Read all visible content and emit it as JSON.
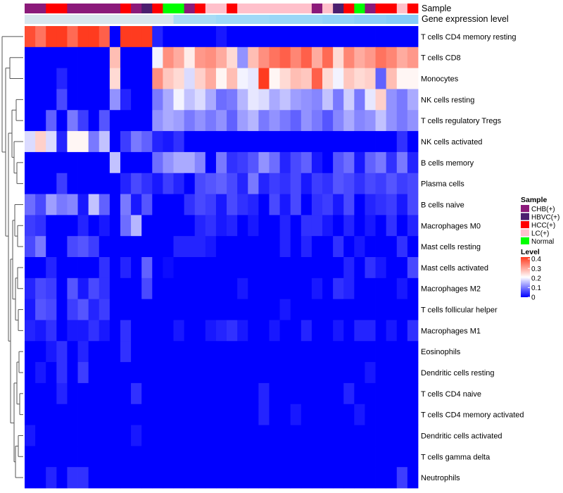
{
  "chart_data": {
    "type": "heatmap",
    "annotation_labels": {
      "sample": "Sample",
      "gene_expression": "Gene expression level"
    },
    "sample_legend": {
      "title": "Sample",
      "entries": [
        {
          "label": "CHB(+)",
          "color": "#8B1A7A"
        },
        {
          "label": "HBVC(+)",
          "color": "#4B1F6F"
        },
        {
          "label": "HCC(+)",
          "color": "#FF0000"
        },
        {
          "label": "LC(+)",
          "color": "#FFC0CB"
        },
        {
          "label": "Normal",
          "color": "#00FF00"
        }
      ]
    },
    "level_legend": {
      "title": "Level",
      "ticks": [
        "0.4",
        "0.3",
        "0.2",
        "0.1",
        "0"
      ],
      "tick_values": [
        0.4,
        0.3,
        0.2,
        0.1,
        0
      ],
      "range": [
        0,
        0.42
      ],
      "colors": [
        "#0000FF",
        "#FFFFFF",
        "#FF3B1F"
      ]
    },
    "sample_groups": [
      "CHB(+)",
      "CHB(+)",
      "HCC(+)",
      "HCC(+)",
      "CHB(+)",
      "CHB(+)",
      "CHB(+)",
      "CHB(+)",
      "CHB(+)",
      "HCC(+)",
      "CHB(+)",
      "HBVC(+)",
      "HCC(+)",
      "Normal",
      "Normal",
      "CHB(+)",
      "HCC(+)",
      "LC(+)",
      "LC(+)",
      "HCC(+)",
      "LC(+)",
      "LC(+)",
      "LC(+)",
      "LC(+)",
      "LC(+)",
      "LC(+)",
      "LC(+)",
      "CHB(+)",
      "LC(+)",
      "HBVC(+)",
      "HCC(+)",
      "Normal",
      "CHB(+)",
      "HCC(+)",
      "HCC(+)",
      "LC(+)",
      "HCC(+)"
    ],
    "gene_expression_colors": [
      "#D8E6EE",
      "#D8E6EE",
      "#D8E6EE",
      "#D8E6EE",
      "#D8E6EE",
      "#D8E6EE",
      "#D8E6EE",
      "#D8E6EE",
      "#D8E6EE",
      "#D8E6EE",
      "#D8E6EE",
      "#D8E6EE",
      "#D8E6EE",
      "#D8E6EE",
      "#A9DCF5",
      "#A9DCF5",
      "#A9DCF5",
      "#A9DCF5",
      "#9FD9F7",
      "#9FD9F7",
      "#9FD9F7",
      "#9FD9F7",
      "#9FD9F7",
      "#9AD7F7",
      "#9AD7F7",
      "#9AD7F7",
      "#9AD7F7",
      "#9AD7F7",
      "#93D3F8",
      "#93D3F8",
      "#93D3F8",
      "#8CCFF8",
      "#8CCFF8",
      "#8CCFF8",
      "#86CCF8",
      "#86CCF8",
      "#86CCF8"
    ],
    "rows": [
      "T cells CD4 memory resting",
      "T cells CD8",
      "Monocytes",
      "NK cells resting",
      "T cells regulatory  Tregs",
      "NK cells activated",
      "B cells memory",
      "Plasma cells",
      "B cells naive",
      "Macrophages M0",
      "Mast cells resting",
      "Mast cells activated",
      "Macrophages M2",
      "T cells follicular helper",
      "Macrophages M1",
      "Eosinophils",
      "Dendritic cells resting",
      "T cells CD4 naive",
      "T cells CD4 memory activated",
      "Dendritic cells activated",
      "T cells gamma delta",
      "Neutrophils"
    ],
    "values": [
      [
        0.4,
        0.36,
        0.42,
        0.42,
        0.37,
        0.42,
        0.42,
        0.38,
        0.0,
        0.42,
        0.42,
        0.42,
        0.03,
        0.0,
        0.0,
        0.0,
        0.0,
        0.0,
        0.02,
        0.0,
        0.0,
        0.0,
        0.0,
        0.0,
        0.0,
        0.0,
        0.0,
        0.0,
        0.0,
        0.0,
        0.0,
        0.0,
        0.0,
        0.0,
        0.0,
        0.0,
        0.0
      ],
      [
        0.0,
        0.0,
        0.0,
        0.0,
        0.0,
        0.0,
        0.0,
        0.0,
        0.28,
        0.0,
        0.0,
        0.0,
        0.2,
        0.33,
        0.3,
        0.23,
        0.32,
        0.33,
        0.3,
        0.25,
        0.12,
        0.28,
        0.33,
        0.36,
        0.38,
        0.34,
        0.38,
        0.3,
        0.37,
        0.25,
        0.34,
        0.3,
        0.32,
        0.36,
        0.34,
        0.3,
        0.32
      ],
      [
        0.0,
        0.0,
        0.0,
        0.03,
        0.0,
        0.0,
        0.0,
        0.0,
        0.25,
        0.0,
        0.0,
        0.0,
        0.33,
        0.27,
        0.25,
        0.18,
        0.26,
        0.3,
        0.22,
        0.28,
        0.2,
        0.19,
        0.42,
        0.22,
        0.25,
        0.28,
        0.27,
        0.38,
        0.25,
        0.2,
        0.27,
        0.25,
        0.26,
        0.08,
        0.28,
        0.22,
        0.22
      ],
      [
        0.0,
        0.0,
        0.0,
        0.06,
        0.0,
        0.0,
        0.0,
        0.0,
        0.12,
        0.03,
        0.0,
        0.0,
        0.1,
        0.14,
        0.2,
        0.16,
        0.18,
        0.14,
        0.09,
        0.1,
        0.15,
        0.19,
        0.18,
        0.14,
        0.16,
        0.13,
        0.12,
        0.11,
        0.16,
        0.1,
        0.17,
        0.1,
        0.19,
        0.26,
        0.12,
        0.1,
        0.14
      ],
      [
        0.0,
        0.0,
        0.08,
        0.0,
        0.1,
        0.05,
        0.0,
        0.07,
        0.0,
        0.0,
        0.0,
        0.0,
        0.12,
        0.14,
        0.13,
        0.1,
        0.12,
        0.1,
        0.12,
        0.08,
        0.13,
        0.15,
        0.1,
        0.12,
        0.1,
        0.08,
        0.12,
        0.1,
        0.07,
        0.11,
        0.14,
        0.11,
        0.12,
        0.16,
        0.12,
        0.1,
        0.12
      ],
      [
        0.18,
        0.26,
        0.18,
        0.03,
        0.22,
        0.22,
        0.1,
        0.16,
        0.0,
        0.05,
        0.1,
        0.08,
        0.03,
        0.02,
        0.04,
        0.0,
        0.0,
        0.0,
        0.0,
        0.0,
        0.0,
        0.0,
        0.0,
        0.0,
        0.0,
        0.0,
        0.0,
        0.0,
        0.0,
        0.0,
        0.0,
        0.0,
        0.0,
        0.0,
        0.0,
        0.04,
        0.0
      ],
      [
        0.0,
        0.0,
        0.0,
        0.0,
        0.0,
        0.0,
        0.0,
        0.0,
        0.16,
        0.0,
        0.0,
        0.0,
        0.09,
        0.12,
        0.14,
        0.14,
        0.11,
        0.0,
        0.1,
        0.04,
        0.05,
        0.07,
        0.12,
        0.09,
        0.03,
        0.06,
        0.08,
        0.02,
        0.0,
        0.07,
        0.09,
        0.02,
        0.08,
        0.1,
        0.04,
        0.1,
        0.03
      ],
      [
        0.0,
        0.0,
        0.0,
        0.05,
        0.0,
        0.0,
        0.0,
        0.0,
        0.0,
        0.03,
        0.06,
        0.04,
        0.02,
        0.05,
        0.03,
        0.0,
        0.06,
        0.07,
        0.08,
        0.06,
        0.03,
        0.1,
        0.03,
        0.05,
        0.04,
        0.06,
        0.02,
        0.05,
        0.04,
        0.07,
        0.06,
        0.04,
        0.06,
        0.05,
        0.07,
        0.05,
        0.06
      ],
      [
        0.09,
        0.06,
        0.13,
        0.1,
        0.11,
        0.02,
        0.16,
        0.08,
        0.0,
        0.1,
        0.02,
        0.07,
        0.0,
        0.0,
        0.0,
        0.04,
        0.06,
        0.05,
        0.02,
        0.06,
        0.04,
        0.03,
        0.0,
        0.06,
        0.02,
        0.06,
        0.0,
        0.04,
        0.05,
        0.02,
        0.06,
        0.0,
        0.03,
        0.04,
        0.05,
        0.02,
        0.06
      ],
      [
        0.05,
        0.04,
        0.0,
        0.0,
        0.0,
        0.03,
        0.0,
        0.02,
        0.0,
        0.09,
        0.15,
        0.0,
        0.0,
        0.0,
        0.0,
        0.0,
        0.03,
        0.04,
        0.02,
        0.03,
        0.0,
        0.02,
        0.0,
        0.0,
        0.03,
        0.0,
        0.04,
        0.04,
        0.02,
        0.0,
        0.03,
        0.0,
        0.02,
        0.0,
        0.04,
        0.0,
        0.03
      ],
      [
        0.06,
        0.1,
        0.0,
        0.0,
        0.06,
        0.07,
        0.05,
        0.0,
        0.0,
        0.0,
        0.0,
        0.0,
        0.0,
        0.0,
        0.03,
        0.03,
        0.03,
        0.02,
        0.0,
        0.0,
        0.0,
        0.0,
        0.0,
        0.0,
        0.03,
        0.0,
        0.03,
        0.0,
        0.0,
        0.04,
        0.0,
        0.02,
        0.0,
        0.0,
        0.0,
        0.04,
        0.0
      ],
      [
        0.0,
        0.0,
        0.03,
        0.0,
        0.0,
        0.0,
        0.0,
        0.04,
        0.0,
        0.03,
        0.0,
        0.08,
        0.0,
        0.01,
        0.0,
        0.0,
        0.0,
        0.0,
        0.0,
        0.0,
        0.0,
        0.0,
        0.0,
        0.0,
        0.0,
        0.0,
        0.0,
        0.0,
        0.0,
        0.0,
        0.03,
        0.0,
        0.04,
        0.02,
        0.0,
        0.0,
        0.06
      ],
      [
        0.03,
        0.06,
        0.05,
        0.0,
        0.07,
        0.02,
        0.06,
        0.04,
        0.0,
        0.0,
        0.0,
        0.06,
        0.0,
        0.0,
        0.0,
        0.0,
        0.0,
        0.0,
        0.0,
        0.0,
        0.02,
        0.0,
        0.0,
        0.0,
        0.0,
        0.0,
        0.0,
        0.02,
        0.0,
        0.04,
        0.03,
        0.0,
        0.0,
        0.0,
        0.0,
        0.02,
        0.0
      ],
      [
        0.02,
        0.07,
        0.06,
        0.0,
        0.05,
        0.07,
        0.03,
        0.05,
        0.0,
        0.0,
        0.0,
        0.0,
        0.0,
        0.0,
        0.0,
        0.0,
        0.0,
        0.0,
        0.0,
        0.0,
        0.0,
        0.0,
        0.0,
        0.0,
        0.02,
        0.0,
        0.0,
        0.0,
        0.0,
        0.0,
        0.0,
        0.0,
        0.0,
        0.0,
        0.0,
        0.0,
        0.0
      ],
      [
        0.03,
        0.02,
        0.04,
        0.0,
        0.02,
        0.02,
        0.04,
        0.02,
        0.0,
        0.04,
        0.0,
        0.0,
        0.0,
        0.0,
        0.02,
        0.0,
        0.0,
        0.02,
        0.03,
        0.04,
        0.02,
        0.0,
        0.0,
        0.02,
        0.0,
        0.0,
        0.03,
        0.0,
        0.0,
        0.02,
        0.0,
        0.03,
        0.03,
        0.0,
        0.02,
        0.0,
        0.04
      ],
      [
        0.0,
        0.0,
        0.02,
        0.04,
        0.0,
        0.03,
        0.0,
        0.0,
        0.0,
        0.04,
        0.0,
        0.0,
        0.0,
        0.0,
        0.0,
        0.0,
        0.0,
        0.0,
        0.0,
        0.0,
        0.0,
        0.0,
        0.0,
        0.0,
        0.0,
        0.0,
        0.0,
        0.0,
        0.0,
        0.0,
        0.0,
        0.0,
        0.0,
        0.0,
        0.0,
        0.0,
        0.0
      ],
      [
        0.0,
        0.02,
        0.0,
        0.04,
        0.0,
        0.05,
        0.0,
        0.0,
        0.0,
        0.0,
        0.0,
        0.0,
        0.0,
        0.0,
        0.0,
        0.0,
        0.0,
        0.0,
        0.0,
        0.0,
        0.0,
        0.0,
        0.0,
        0.0,
        0.0,
        0.0,
        0.0,
        0.0,
        0.0,
        0.0,
        0.0,
        0.0,
        0.02,
        0.0,
        0.0,
        0.0,
        0.0
      ],
      [
        0.0,
        0.0,
        0.0,
        0.03,
        0.0,
        0.0,
        0.0,
        0.0,
        0.0,
        0.0,
        0.04,
        0.0,
        0.0,
        0.0,
        0.0,
        0.0,
        0.0,
        0.0,
        0.0,
        0.0,
        0.0,
        0.0,
        0.03,
        0.0,
        0.0,
        0.0,
        0.0,
        0.0,
        0.0,
        0.0,
        0.03,
        0.0,
        0.0,
        0.0,
        0.0,
        0.0,
        0.0
      ],
      [
        0.0,
        0.0,
        0.0,
        0.0,
        0.0,
        0.0,
        0.0,
        0.0,
        0.0,
        0.0,
        0.0,
        0.0,
        0.0,
        0.0,
        0.0,
        0.0,
        0.0,
        0.0,
        0.0,
        0.0,
        0.0,
        0.0,
        0.03,
        0.0,
        0.0,
        0.02,
        0.0,
        0.0,
        0.0,
        0.0,
        0.0,
        0.02,
        0.0,
        0.0,
        0.0,
        0.0,
        0.0
      ],
      [
        0.02,
        0.0,
        0.0,
        0.0,
        0.0,
        0.0,
        0.0,
        0.0,
        0.0,
        0.0,
        0.02,
        0.0,
        0.0,
        0.0,
        0.0,
        0.0,
        0.0,
        0.0,
        0.0,
        0.0,
        0.0,
        0.0,
        0.0,
        0.0,
        0.0,
        0.0,
        0.0,
        0.0,
        0.0,
        0.0,
        0.0,
        0.0,
        0.0,
        0.0,
        0.0,
        0.0,
        0.0
      ],
      [
        0.0,
        0.0,
        0.0,
        0.0,
        0.0,
        0.0,
        0.0,
        0.0,
        0.0,
        0.0,
        0.0,
        0.0,
        0.0,
        0.0,
        0.0,
        0.0,
        0.0,
        0.0,
        0.0,
        0.0,
        0.0,
        0.0,
        0.0,
        0.0,
        0.0,
        0.0,
        0.0,
        0.0,
        0.0,
        0.0,
        0.0,
        0.0,
        0.0,
        0.0,
        0.0,
        0.0,
        0.0
      ],
      [
        0.0,
        0.0,
        0.03,
        0.0,
        0.04,
        0.04,
        0.0,
        0.0,
        0.0,
        0.0,
        0.0,
        0.0,
        0.0,
        0.0,
        0.0,
        0.0,
        0.0,
        0.0,
        0.0,
        0.0,
        0.0,
        0.0,
        0.0,
        0.0,
        0.0,
        0.0,
        0.0,
        0.0,
        0.0,
        0.0,
        0.0,
        0.0,
        0.0,
        0.0,
        0.0,
        0.05,
        0.0
      ]
    ]
  }
}
